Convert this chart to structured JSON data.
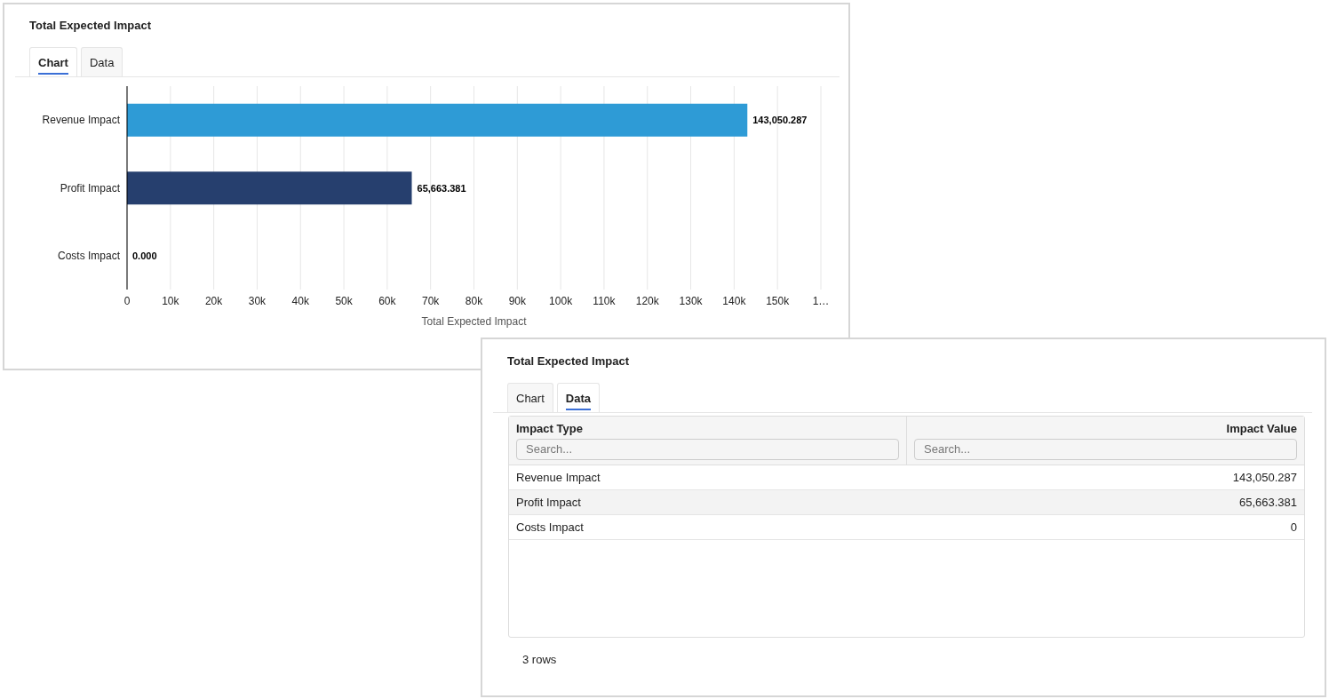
{
  "chart_data": [
    {
      "type": "bar",
      "orientation": "horizontal",
      "title": "Total Expected Impact",
      "xlabel": "Total Expected Impact",
      "annotations": [
        "Chart",
        "Data"
      ],
      "categories": [
        "Revenue Impact",
        "Profit Impact",
        "Costs Impact"
      ],
      "values": [
        143050.287,
        65663.381,
        0
      ],
      "colors": [
        "#2e9bd6",
        "#263f6e",
        "#2e9bd6"
      ],
      "value_labels": [
        "143,050.287",
        "65,663.381",
        "0.000"
      ],
      "xlim": [
        0,
        160000
      ],
      "xticks": [
        0,
        {
          "value": 10000,
          "label": "10k"
        },
        {
          "value": 20000,
          "label": "20k"
        },
        {
          "value": 30000,
          "label": "30k"
        },
        {
          "value": 40000,
          "label": "40k"
        },
        {
          "value": 50000,
          "label": "50k"
        },
        {
          "value": 60000,
          "label": "60k"
        },
        {
          "value": 70000,
          "label": "70k"
        },
        {
          "value": 80000,
          "label": "80k"
        },
        {
          "value": 90000,
          "label": "90k"
        },
        {
          "value": 100000,
          "label": "100k"
        },
        {
          "value": 110000,
          "label": "110k"
        },
        {
          "value": 120000,
          "label": "120k"
        },
        {
          "value": 130000,
          "label": "130k"
        },
        {
          "value": 140000,
          "label": "140k"
        },
        {
          "value": 150000,
          "label": "150k"
        },
        {
          "value": 160000,
          "label": "1…"
        }
      ],
      "grid": "x"
    },
    {
      "type": "other",
      "title": "Total Expected Impact",
      "annotations": [
        "Chart",
        "Data",
        "Impact Type",
        "Impact Value",
        "Search...",
        "Search...",
        "3 rows"
      ],
      "categories": [
        "Revenue Impact",
        "Profit Impact",
        "Costs Impact"
      ],
      "value_labels": [
        "143,050.287",
        "65,663.381",
        "0"
      ]
    }
  ]
}
